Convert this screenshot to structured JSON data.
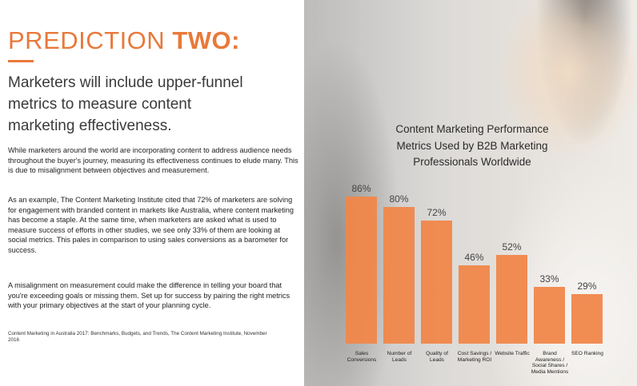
{
  "page": {
    "heading": {
      "light": "PREDICTION",
      "bold": "TWO:"
    },
    "subtitle": "Marketers will include upper-funnel metrics to measure content marketing effectiveness.",
    "paragraphs": [
      "While marketers around the world are incorporating content to address audience needs throughout the buyer's journey, measuring its effectiveness continues to elude many. This is due to misalignment between objectives and measurement.",
      "As an example, The Content Marketing Institute cited that 72% of marketers are solving for engagement with branded content in markets like Australia, where content marketing has become a staple. At the same time, when marketers are asked what is used to measure success of efforts in other studies, we see only 33% of them are looking at social metrics. This pales in comparison to using sales conversions as a barometer for success.",
      "A misalignment on measurement could make the difference in telling your board that you're exceeding goals or missing them. Set up for success by pairing the right metrics with your primary objectives at the start of your planning cycle."
    ],
    "footnote": "Content Marketing in Australia 2017: Benchmarks, Budgets, and Trends, The Content Marketing Institute, November 2016"
  },
  "chart_data": {
    "type": "bar",
    "title": "Content Marketing Performance Metrics Used by B2B Marketing Professionals Worldwide",
    "categories": [
      "Sales Conversions",
      "Number of Leads",
      "Quality of Leads",
      "Cost Savings / Marketing ROI",
      "Website Traffic",
      "Brand Awareness / Social Shares / Media Mentions",
      "SEO Ranking"
    ],
    "values": [
      86,
      80,
      72,
      46,
      52,
      33,
      29
    ],
    "value_labels": [
      "86%",
      "80%",
      "72%",
      "46%",
      "52%",
      "33%",
      "29%"
    ],
    "color": "#f0874a",
    "ylim": [
      0,
      100
    ]
  }
}
